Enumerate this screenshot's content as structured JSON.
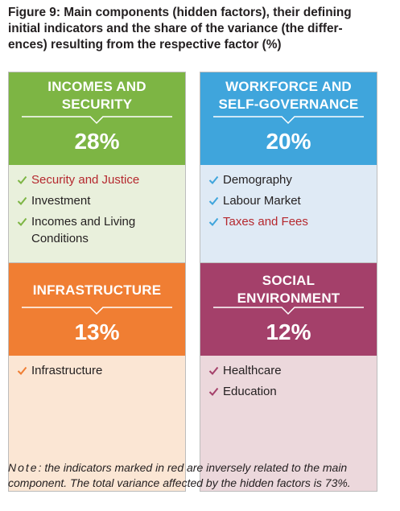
{
  "figure": {
    "title_lines": [
      "Figure 9: Main components (hidden factors), their defining",
      "initial indicators and the share of the variance (the differ-",
      "ences) resulting from the respective factor (%)"
    ]
  },
  "colors": {
    "incomes": "#7db544",
    "workforce": "#3fa5dc",
    "infrastructure": "#f07e33",
    "social": "#a4406a",
    "inverse_text": "#b5282e"
  },
  "cards": [
    {
      "name_lines": [
        "INCOMES AND",
        "SECURITY"
      ],
      "percent": "28%",
      "indicators": [
        {
          "label": "Security and Justice",
          "inverse": true
        },
        {
          "label": "Investment",
          "inverse": false
        },
        {
          "label": "Incomes and Living Conditions",
          "inverse": false
        }
      ]
    },
    {
      "name_lines": [
        "WORKFORCE AND",
        "SELF-GOVERNANCE"
      ],
      "percent": "20%",
      "indicators": [
        {
          "label": "Demography",
          "inverse": false
        },
        {
          "label": "Labour Market",
          "inverse": false
        },
        {
          "label": "Taxes and Fees",
          "inverse": true
        }
      ]
    },
    {
      "name_lines": [
        "INFRASTRUCTURE"
      ],
      "percent": "13%",
      "indicators": [
        {
          "label": "Infrastructure",
          "inverse": false
        }
      ]
    },
    {
      "name_lines": [
        "SOCIAL",
        "ENVIRONMENT"
      ],
      "percent": "12%",
      "indicators": [
        {
          "label": "Healthcare",
          "inverse": false
        },
        {
          "label": "Education",
          "inverse": false
        }
      ]
    }
  ],
  "note": {
    "label": "Note",
    "text": ": the indicators marked in red are inversely related to the main component. The total variance affected by the hidden factors is 73%."
  }
}
